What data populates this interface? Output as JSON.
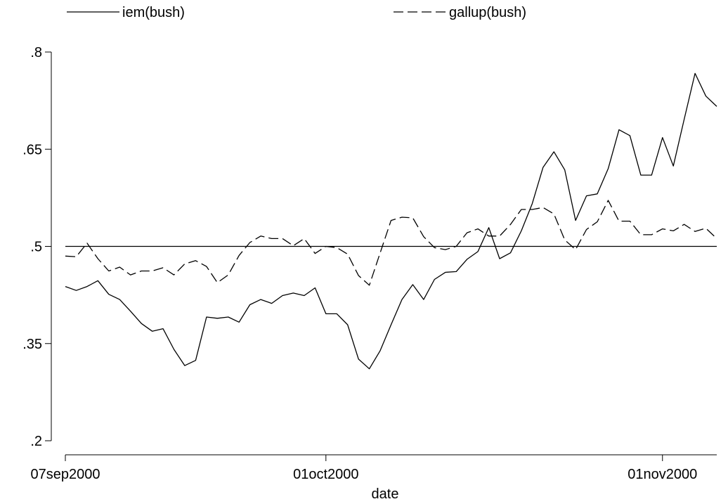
{
  "chart_data": {
    "type": "line",
    "title": "",
    "xlabel": "date",
    "ylabel": "",
    "x_type": "date",
    "xlim": [
      "2000-09-07",
      "2000-11-06"
    ],
    "ylim": [
      0.2,
      0.8
    ],
    "yticks": [
      0.2,
      0.35,
      0.5,
      0.65,
      0.8
    ],
    "ytick_labels": [
      ".2",
      ".35",
      ".5",
      ".65",
      ".8"
    ],
    "xticks": [
      "2000-09-07",
      "2000-10-01",
      "2000-11-01"
    ],
    "xtick_labels": [
      "07sep2000",
      "01oct2000",
      "01nov2000"
    ],
    "grid": false,
    "legend_position": "top",
    "reference_line": {
      "y": 0.5,
      "style": "solid",
      "color": "#000000"
    },
    "series": [
      {
        "name": "iem(bush)",
        "style": "solid",
        "color": "#000000",
        "points": [
          [
            "2000-09-07",
            0.438
          ],
          [
            "2000-09-08",
            0.432
          ],
          [
            "2000-09-09",
            0.438
          ],
          [
            "2000-09-10",
            0.447
          ],
          [
            "2000-09-11",
            0.426
          ],
          [
            "2000-09-12",
            0.418
          ],
          [
            "2000-09-13",
            0.4
          ],
          [
            "2000-09-14",
            0.381
          ],
          [
            "2000-09-15",
            0.369
          ],
          [
            "2000-09-16",
            0.373
          ],
          [
            "2000-09-17",
            0.341
          ],
          [
            "2000-09-18",
            0.316
          ],
          [
            "2000-09-19",
            0.324
          ],
          [
            "2000-09-20",
            0.391
          ],
          [
            "2000-09-21",
            0.389
          ],
          [
            "2000-09-22",
            0.391
          ],
          [
            "2000-09-23",
            0.383
          ],
          [
            "2000-09-24",
            0.41
          ],
          [
            "2000-09-25",
            0.418
          ],
          [
            "2000-09-26",
            0.412
          ],
          [
            "2000-09-27",
            0.424
          ],
          [
            "2000-09-28",
            0.428
          ],
          [
            "2000-09-29",
            0.424
          ],
          [
            "2000-09-30",
            0.436
          ],
          [
            "2000-10-01",
            0.396
          ],
          [
            "2000-10-02",
            0.396
          ],
          [
            "2000-10-03",
            0.379
          ],
          [
            "2000-10-04",
            0.326
          ],
          [
            "2000-10-05",
            0.311
          ],
          [
            "2000-10-06",
            0.339
          ],
          [
            "2000-10-07",
            0.379
          ],
          [
            "2000-10-08",
            0.418
          ],
          [
            "2000-10-09",
            0.441
          ],
          [
            "2000-10-10",
            0.418
          ],
          [
            "2000-10-11",
            0.449
          ],
          [
            "2000-10-12",
            0.46
          ],
          [
            "2000-10-13",
            0.461
          ],
          [
            "2000-10-14",
            0.48
          ],
          [
            "2000-10-15",
            0.492
          ],
          [
            "2000-10-16",
            0.529
          ],
          [
            "2000-10-17",
            0.481
          ],
          [
            "2000-10-18",
            0.49
          ],
          [
            "2000-10-19",
            0.524
          ],
          [
            "2000-10-20",
            0.566
          ],
          [
            "2000-10-21",
            0.622
          ],
          [
            "2000-10-22",
            0.646
          ],
          [
            "2000-10-23",
            0.618
          ],
          [
            "2000-10-24",
            0.54
          ],
          [
            "2000-10-25",
            0.578
          ],
          [
            "2000-10-26",
            0.581
          ],
          [
            "2000-10-27",
            0.62
          ],
          [
            "2000-10-28",
            0.68
          ],
          [
            "2000-10-29",
            0.671
          ],
          [
            "2000-10-30",
            0.61
          ],
          [
            "2000-10-31",
            0.61
          ],
          [
            "2000-11-01",
            0.668
          ],
          [
            "2000-11-02",
            0.624
          ],
          [
            "2000-11-03",
            0.696
          ],
          [
            "2000-11-04",
            0.767
          ],
          [
            "2000-11-05",
            0.732
          ],
          [
            "2000-11-06",
            0.716
          ]
        ]
      },
      {
        "name": "gallup(bush)",
        "style": "dashed",
        "color": "#000000",
        "points": [
          [
            "2000-09-07",
            0.485
          ],
          [
            "2000-09-08",
            0.484
          ],
          [
            "2000-09-09",
            0.505
          ],
          [
            "2000-09-10",
            0.481
          ],
          [
            "2000-09-11",
            0.462
          ],
          [
            "2000-09-12",
            0.468
          ],
          [
            "2000-09-13",
            0.456
          ],
          [
            "2000-09-14",
            0.462
          ],
          [
            "2000-09-15",
            0.462
          ],
          [
            "2000-09-16",
            0.467
          ],
          [
            "2000-09-17",
            0.456
          ],
          [
            "2000-09-18",
            0.473
          ],
          [
            "2000-09-19",
            0.478
          ],
          [
            "2000-09-20",
            0.469
          ],
          [
            "2000-09-21",
            0.444
          ],
          [
            "2000-09-22",
            0.456
          ],
          [
            "2000-09-23",
            0.486
          ],
          [
            "2000-09-24",
            0.506
          ],
          [
            "2000-09-25",
            0.516
          ],
          [
            "2000-09-26",
            0.512
          ],
          [
            "2000-09-27",
            0.512
          ],
          [
            "2000-09-28",
            0.501
          ],
          [
            "2000-09-29",
            0.512
          ],
          [
            "2000-09-30",
            0.489
          ],
          [
            "2000-10-01",
            0.5
          ],
          [
            "2000-10-02",
            0.498
          ],
          [
            "2000-10-03",
            0.488
          ],
          [
            "2000-10-04",
            0.455
          ],
          [
            "2000-10-05",
            0.44
          ],
          [
            "2000-10-06",
            0.49
          ],
          [
            "2000-10-07",
            0.54
          ],
          [
            "2000-10-08",
            0.545
          ],
          [
            "2000-10-09",
            0.544
          ],
          [
            "2000-10-10",
            0.515
          ],
          [
            "2000-10-11",
            0.498
          ],
          [
            "2000-10-12",
            0.495
          ],
          [
            "2000-10-13",
            0.5
          ],
          [
            "2000-10-14",
            0.521
          ],
          [
            "2000-10-15",
            0.527
          ],
          [
            "2000-10-16",
            0.516
          ],
          [
            "2000-10-17",
            0.516
          ],
          [
            "2000-10-18",
            0.534
          ],
          [
            "2000-10-19",
            0.557
          ],
          [
            "2000-10-20",
            0.557
          ],
          [
            "2000-10-21",
            0.56
          ],
          [
            "2000-10-22",
            0.55
          ],
          [
            "2000-10-23",
            0.51
          ],
          [
            "2000-10-24",
            0.495
          ],
          [
            "2000-10-25",
            0.526
          ],
          [
            "2000-10-26",
            0.538
          ],
          [
            "2000-10-27",
            0.571
          ],
          [
            "2000-10-28",
            0.539
          ],
          [
            "2000-10-29",
            0.539
          ],
          [
            "2000-10-30",
            0.518
          ],
          [
            "2000-10-31",
            0.518
          ],
          [
            "2000-11-01",
            0.527
          ],
          [
            "2000-11-02",
            0.524
          ],
          [
            "2000-11-03",
            0.534
          ],
          [
            "2000-11-04",
            0.523
          ],
          [
            "2000-11-05",
            0.528
          ],
          [
            "2000-11-06",
            0.512
          ]
        ]
      }
    ]
  }
}
